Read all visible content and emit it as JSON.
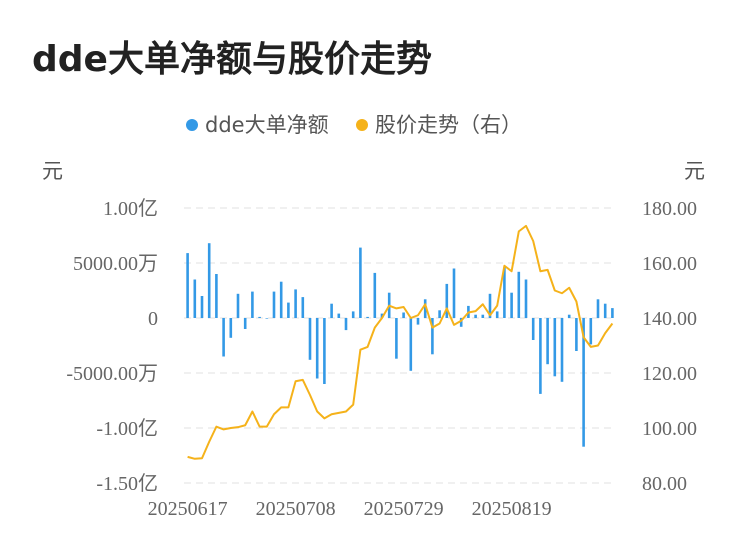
{
  "header": {
    "title": "dde大单净额与股价走势"
  },
  "chart_data": {
    "type": "bar+line",
    "title": "dde大单净额与股价走势",
    "legend": [
      {
        "name": "dde大单净额",
        "color": "#3399e6"
      },
      {
        "name": "股价走势（右）",
        "color": "#f5b21a"
      }
    ],
    "legend_position": "top",
    "left_axis": {
      "unit": "元",
      "ticks": [
        {
          "value": 1.0,
          "label": "1.00亿"
        },
        {
          "value": 0.5,
          "label": "5000.00万"
        },
        {
          "value": 0,
          "label": "0"
        },
        {
          "value": -0.5,
          "label": "-5000.00万"
        },
        {
          "value": -1.0,
          "label": "-1.00亿"
        },
        {
          "value": -1.5,
          "label": "-1.50亿"
        }
      ],
      "ylim": [
        -1.5,
        1.0
      ]
    },
    "right_axis": {
      "unit": "元",
      "ticks": [
        {
          "value": 180,
          "label": "180.00"
        },
        {
          "value": 160,
          "label": "160.00"
        },
        {
          "value": 140,
          "label": "140.00"
        },
        {
          "value": 120,
          "label": "120.00"
        },
        {
          "value": 100,
          "label": "100.00"
        },
        {
          "value": 80,
          "label": "80.00"
        }
      ],
      "ylim": [
        80,
        180
      ]
    },
    "x_tick_labels": [
      {
        "index": 0,
        "label": "20250617"
      },
      {
        "index": 15,
        "label": "20250708"
      },
      {
        "index": 30,
        "label": "20250729"
      },
      {
        "index": 45,
        "label": "20250819"
      }
    ],
    "grid": true,
    "series": [
      {
        "name": "dde大单净额",
        "kind": "bar",
        "values": [
          0.59,
          0.35,
          0.2,
          0.68,
          0.4,
          -0.35,
          -0.18,
          0.22,
          -0.1,
          0.24,
          0.01,
          0,
          0.24,
          0.33,
          0.14,
          0.26,
          0.19,
          -0.38,
          -0.55,
          -0.6,
          0.13,
          0.04,
          -0.11,
          0.06,
          0.64,
          0.01,
          0.41,
          0.04,
          0.23,
          -0.37,
          0.05,
          -0.48,
          -0.06,
          0.17,
          -0.33,
          0.07,
          0.31,
          0.45,
          -0.08,
          0.11,
          0.03,
          0.03,
          0.22,
          0.06,
          0.46,
          0.23,
          0.42,
          0.35,
          -0.2,
          -0.69,
          -0.42,
          -0.53,
          -0.58,
          0.03,
          -0.3,
          -1.17,
          -0.24,
          0.17,
          0.13,
          0.09
        ]
      },
      {
        "name": "股价走势（右）",
        "kind": "line",
        "values": [
          89.5,
          88.8,
          89.0,
          95.0,
          100.5,
          99.5,
          100.0,
          100.3,
          101.0,
          106.0,
          100.5,
          100.5,
          105.0,
          107.5,
          107.5,
          117.0,
          117.5,
          112.0,
          106.0,
          103.5,
          105.0,
          105.5,
          106.0,
          108.5,
          128.5,
          129.5,
          136.5,
          140.0,
          144.5,
          143.5,
          144.0,
          140.0,
          141.0,
          145.0,
          136.5,
          138.0,
          143.5,
          137.5,
          139.0,
          142.0,
          142.5,
          145.0,
          141.0,
          144.5,
          159.0,
          157.0,
          171.5,
          173.5,
          168.0,
          157.0,
          157.5,
          150.0,
          149.0,
          151.0,
          146.0,
          133.0,
          129.5,
          130.0,
          134.5,
          138.0
        ]
      }
    ]
  }
}
